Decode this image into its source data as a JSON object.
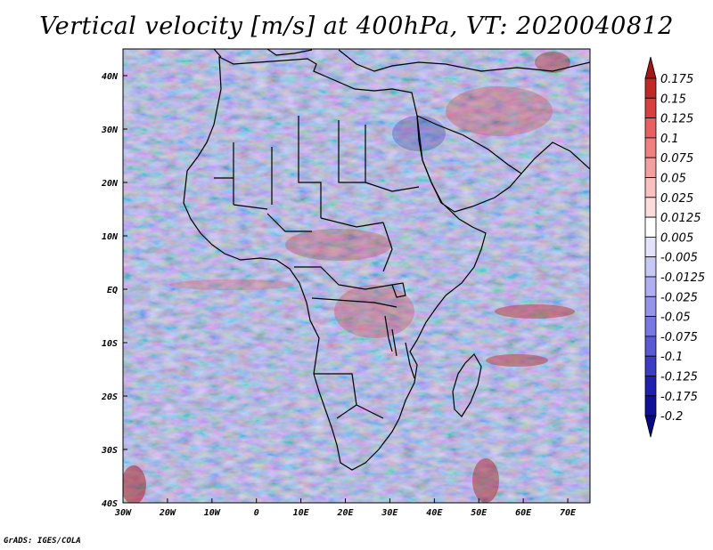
{
  "title": "Vertical velocity [m/s] at 400hPa, VT: 2020040812",
  "footer": "GrADS: IGES/COLA",
  "map": {
    "region": "Africa",
    "lon_range": [
      -30,
      75
    ],
    "lat_range": [
      -40,
      45
    ],
    "lon_ticks": [
      "30W",
      "20W",
      "10W",
      "0",
      "10E",
      "20E",
      "30E",
      "40E",
      "50E",
      "60E",
      "70E"
    ],
    "lat_ticks": [
      "40N",
      "30N",
      "20N",
      "10N",
      "EQ",
      "10S",
      "20S",
      "30S",
      "40S"
    ]
  },
  "colorbar": {
    "labels": [
      "0.175",
      "0.15",
      "0.125",
      "0.1",
      "0.075",
      "0.05",
      "0.025",
      "0.0125",
      "0.005",
      "-0.005",
      "-0.0125",
      "-0.025",
      "-0.05",
      "-0.075",
      "-0.1",
      "-0.125",
      "-0.175",
      "-0.2"
    ],
    "colors": [
      "#a01818",
      "#c02828",
      "#d84040",
      "#e86060",
      "#f08080",
      "#f4a0a0",
      "#f8c0c0",
      "#fadcdc",
      "#ffffff",
      "#e2e2fa",
      "#c8c8f4",
      "#aeaef0",
      "#9494ea",
      "#7878e2",
      "#5a5ad6",
      "#3c3cc6",
      "#2020b0",
      "#10109a",
      "#080880"
    ]
  }
}
